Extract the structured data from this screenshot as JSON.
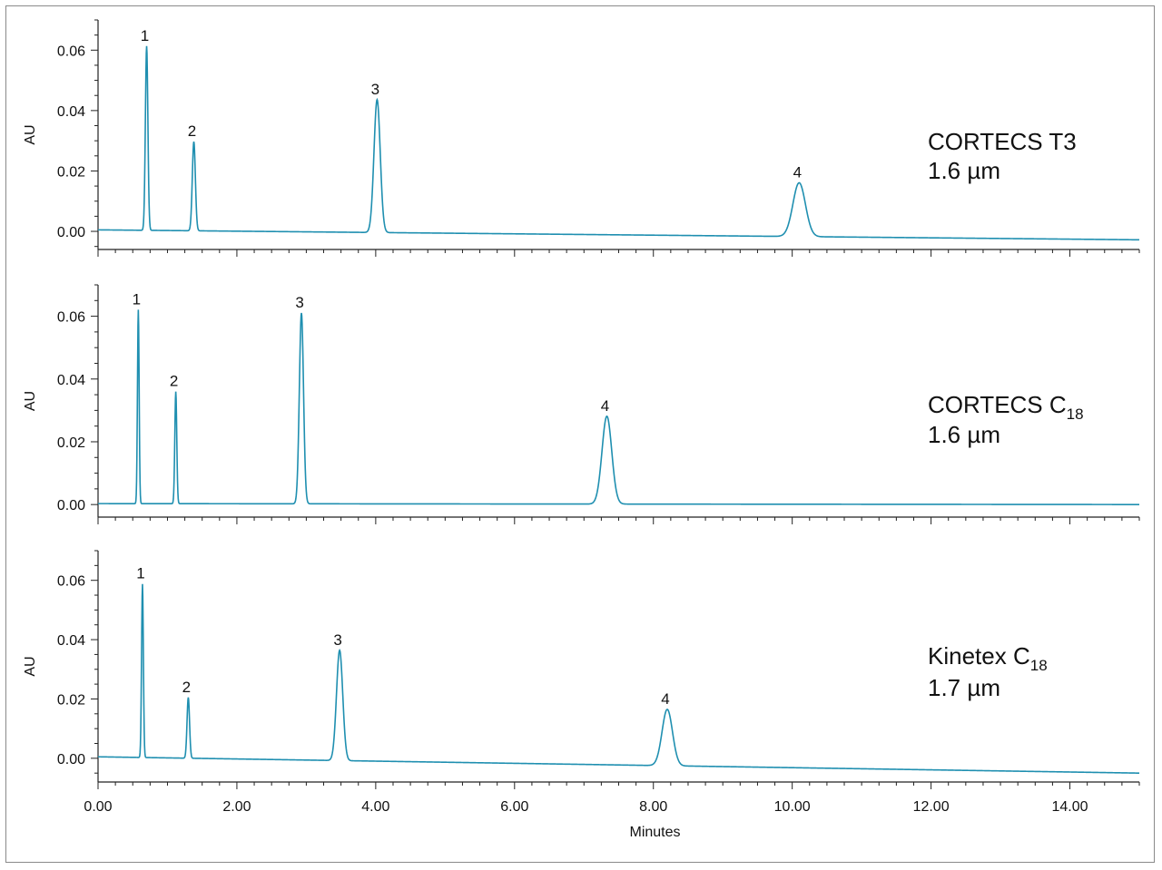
{
  "colors": {
    "trace": "#1f8fb0",
    "axis": "#222222",
    "frame": "#8a8a8a"
  },
  "chart_data": [
    {
      "type": "line",
      "ylabel": "AU",
      "xlim": [
        0,
        15
      ],
      "ylim": [
        -0.006,
        0.07
      ],
      "yticks": [
        "0.00",
        "0.02",
        "0.04",
        "0.06"
      ],
      "column_label": {
        "line1": "CORTECS T3",
        "line1_sub": "",
        "line2": "1.6 µm"
      },
      "baseline": {
        "start": 0.0005,
        "end": -0.0028
      },
      "peaks": [
        {
          "label": "1",
          "time": 0.7,
          "height": 0.061,
          "width": 0.018
        },
        {
          "label": "2",
          "time": 1.38,
          "height": 0.0295,
          "width": 0.022
        },
        {
          "label": "3",
          "time": 4.02,
          "height": 0.044,
          "width": 0.045
        },
        {
          "label": "4",
          "time": 10.1,
          "height": 0.0178,
          "width": 0.09
        }
      ]
    },
    {
      "type": "line",
      "ylabel": "AU",
      "xlim": [
        0,
        15
      ],
      "ylim": [
        -0.004,
        0.07
      ],
      "yticks": [
        "0.00",
        "0.02",
        "0.04",
        "0.06"
      ],
      "column_label": {
        "line1": "CORTECS C",
        "line1_sub": "18",
        "line2": "1.6 µm"
      },
      "baseline": {
        "start": 0.0003,
        "end": 0.0
      },
      "peaks": [
        {
          "label": "1",
          "time": 0.58,
          "height": 0.0618,
          "width": 0.012
        },
        {
          "label": "2",
          "time": 1.12,
          "height": 0.0357,
          "width": 0.014
        },
        {
          "label": "3",
          "time": 2.93,
          "height": 0.0608,
          "width": 0.03
        },
        {
          "label": "4",
          "time": 7.33,
          "height": 0.028,
          "width": 0.07
        }
      ]
    },
    {
      "type": "line",
      "ylabel": "AU",
      "xlabel": "Minutes",
      "xlim": [
        0,
        15
      ],
      "ylim": [
        -0.008,
        0.07
      ],
      "xticks": [
        "0.00",
        "2.00",
        "4.00",
        "6.00",
        "8.00",
        "10.00",
        "12.00",
        "14.00"
      ],
      "yticks": [
        "0.00",
        "0.02",
        "0.04",
        "0.06"
      ],
      "column_label": {
        "line1": "Kinetex C",
        "line1_sub": "18",
        "line2": "1.7 µm"
      },
      "baseline": {
        "start": 0.0005,
        "end": -0.005
      },
      "peaks": [
        {
          "label": "1",
          "time": 0.64,
          "height": 0.0585,
          "width": 0.013
        },
        {
          "label": "2",
          "time": 1.3,
          "height": 0.0205,
          "width": 0.018
        },
        {
          "label": "3",
          "time": 3.48,
          "height": 0.0372,
          "width": 0.045
        },
        {
          "label": "4",
          "time": 8.2,
          "height": 0.019,
          "width": 0.075
        }
      ]
    }
  ]
}
